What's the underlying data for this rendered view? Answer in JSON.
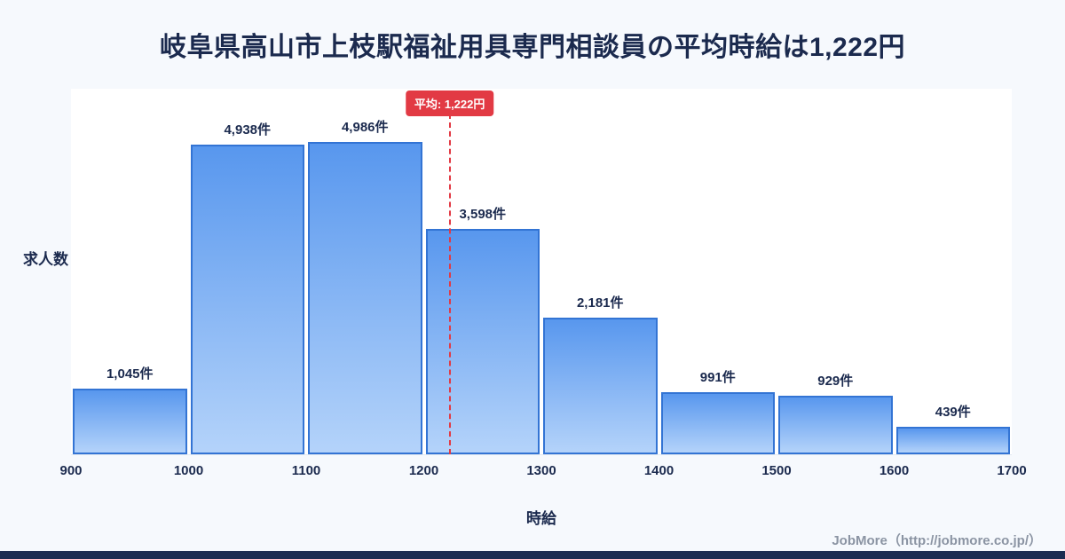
{
  "page": {
    "title": "岐阜県高山市上枝駅福祉用具専門相談員の平均時給は1,222円",
    "footer_credit": "JobMore（http://jobmore.co.jp/）"
  },
  "chart_data": {
    "type": "bar",
    "title": "岐阜県高山市上枝駅福祉用具専門相談員の平均時給は1,222円",
    "xlabel": "時給",
    "ylabel": "求人数",
    "bin_edges": [
      900,
      1000,
      1100,
      1200,
      1300,
      1400,
      1500,
      1600,
      1700
    ],
    "categories": [
      "900-1000",
      "1000-1100",
      "1100-1200",
      "1200-1300",
      "1300-1400",
      "1400-1500",
      "1500-1600",
      "1600-1700"
    ],
    "values": [
      1045,
      4938,
      4986,
      3598,
      2181,
      991,
      929,
      439
    ],
    "value_labels": [
      "1,045件",
      "4,938件",
      "4,986件",
      "3,598件",
      "2,181件",
      "991件",
      "929件",
      "439件"
    ],
    "x_tick_labels": [
      "900",
      "1000",
      "1100",
      "1200",
      "1300",
      "1400",
      "1500",
      "1600",
      "1700"
    ],
    "xlim": [
      900,
      1700
    ],
    "average": 1222,
    "average_label": "平均: 1,222円",
    "legend": "none",
    "grid": false
  },
  "colors": {
    "background": "#f6f9fd",
    "panel": "#ffffff",
    "bar_gradient_top": "#5897ee",
    "bar_gradient_bottom": "#b4d3fa",
    "bar_border": "#3374d4",
    "average_line": "#e23a44",
    "average_badge_bg": "#e23a44",
    "average_badge_text": "#ffffff",
    "title_text": "#1b2a4e",
    "axis_text": "#1b2a4e",
    "footer_text": "#8b94a3",
    "bottom_bar": "#1c2d52"
  }
}
